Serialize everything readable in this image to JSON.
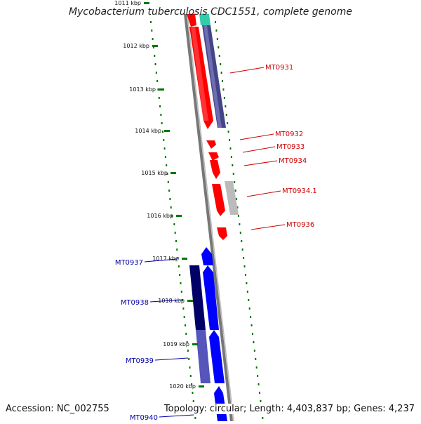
{
  "title": "Mycobacterium tuberculosis CDC1551, complete genome",
  "accession": "Accession: NC_002755",
  "summary": "Topology: circular; Length: 4,403,837 bp; Genes: 4,237",
  "ticks": [
    "1011 kbp",
    "1012 kbp",
    "1013 kbp",
    "1014 kbp",
    "1015 kbp",
    "1016 kbp",
    "1017 kbp",
    "1018 kbp",
    "1019 kbp",
    "1020 kbp"
  ],
  "genes_right": [
    "MT0931",
    "MT0932",
    "MT0933",
    "MT0934",
    "MT0934.1",
    "MT0936"
  ],
  "genes_left": [
    "MT0937",
    "MT0938",
    "MT0939",
    "MT0940"
  ],
  "colors": {
    "forward_gene": "#ff0000",
    "reverse_gene": "#0000ff",
    "right_label": "#cc0000",
    "left_label": "#0000aa",
    "tick": "#007700",
    "backbone": "#888888"
  }
}
